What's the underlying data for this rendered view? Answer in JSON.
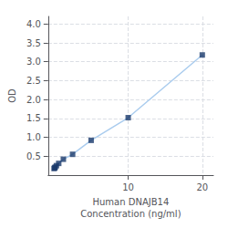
{
  "chart_data": {
    "type": "line",
    "xlabel": "Human DNAJB14\nConcentration (ng/ml)",
    "ylabel": "OD",
    "x": [
      0.0,
      0.078125,
      0.15625,
      0.3125,
      0.625,
      1.25,
      2.5,
      5.0,
      10.0,
      20.0
    ],
    "series": [
      {
        "type": "line",
        "color": "#aaccee",
        "values": [
          0.175,
          0.19,
          0.21,
          0.25,
          0.31,
          0.42,
          0.55,
          0.92,
          1.52,
          3.18
        ]
      },
      {
        "type": "scatter",
        "color": "#1a3a6b",
        "marker": "square",
        "values": [
          0.175,
          0.19,
          0.21,
          0.25,
          0.31,
          0.42,
          0.55,
          0.92,
          1.52,
          3.18
        ]
      }
    ],
    "xlim": [
      -0.8,
      21.5
    ],
    "ylim": [
      0.0,
      4.2
    ],
    "xticks": [
      10,
      20
    ],
    "yticks": [
      0.5,
      {
        "value": 1,
        "label": "1.0"
      },
      1.5,
      {
        "value": 2,
        "label": "2.0"
      },
      2.5,
      {
        "value": 3,
        "label": "3.0"
      },
      3.5,
      {
        "value": 4,
        "label": "4.0"
      }
    ],
    "grid": true
  }
}
